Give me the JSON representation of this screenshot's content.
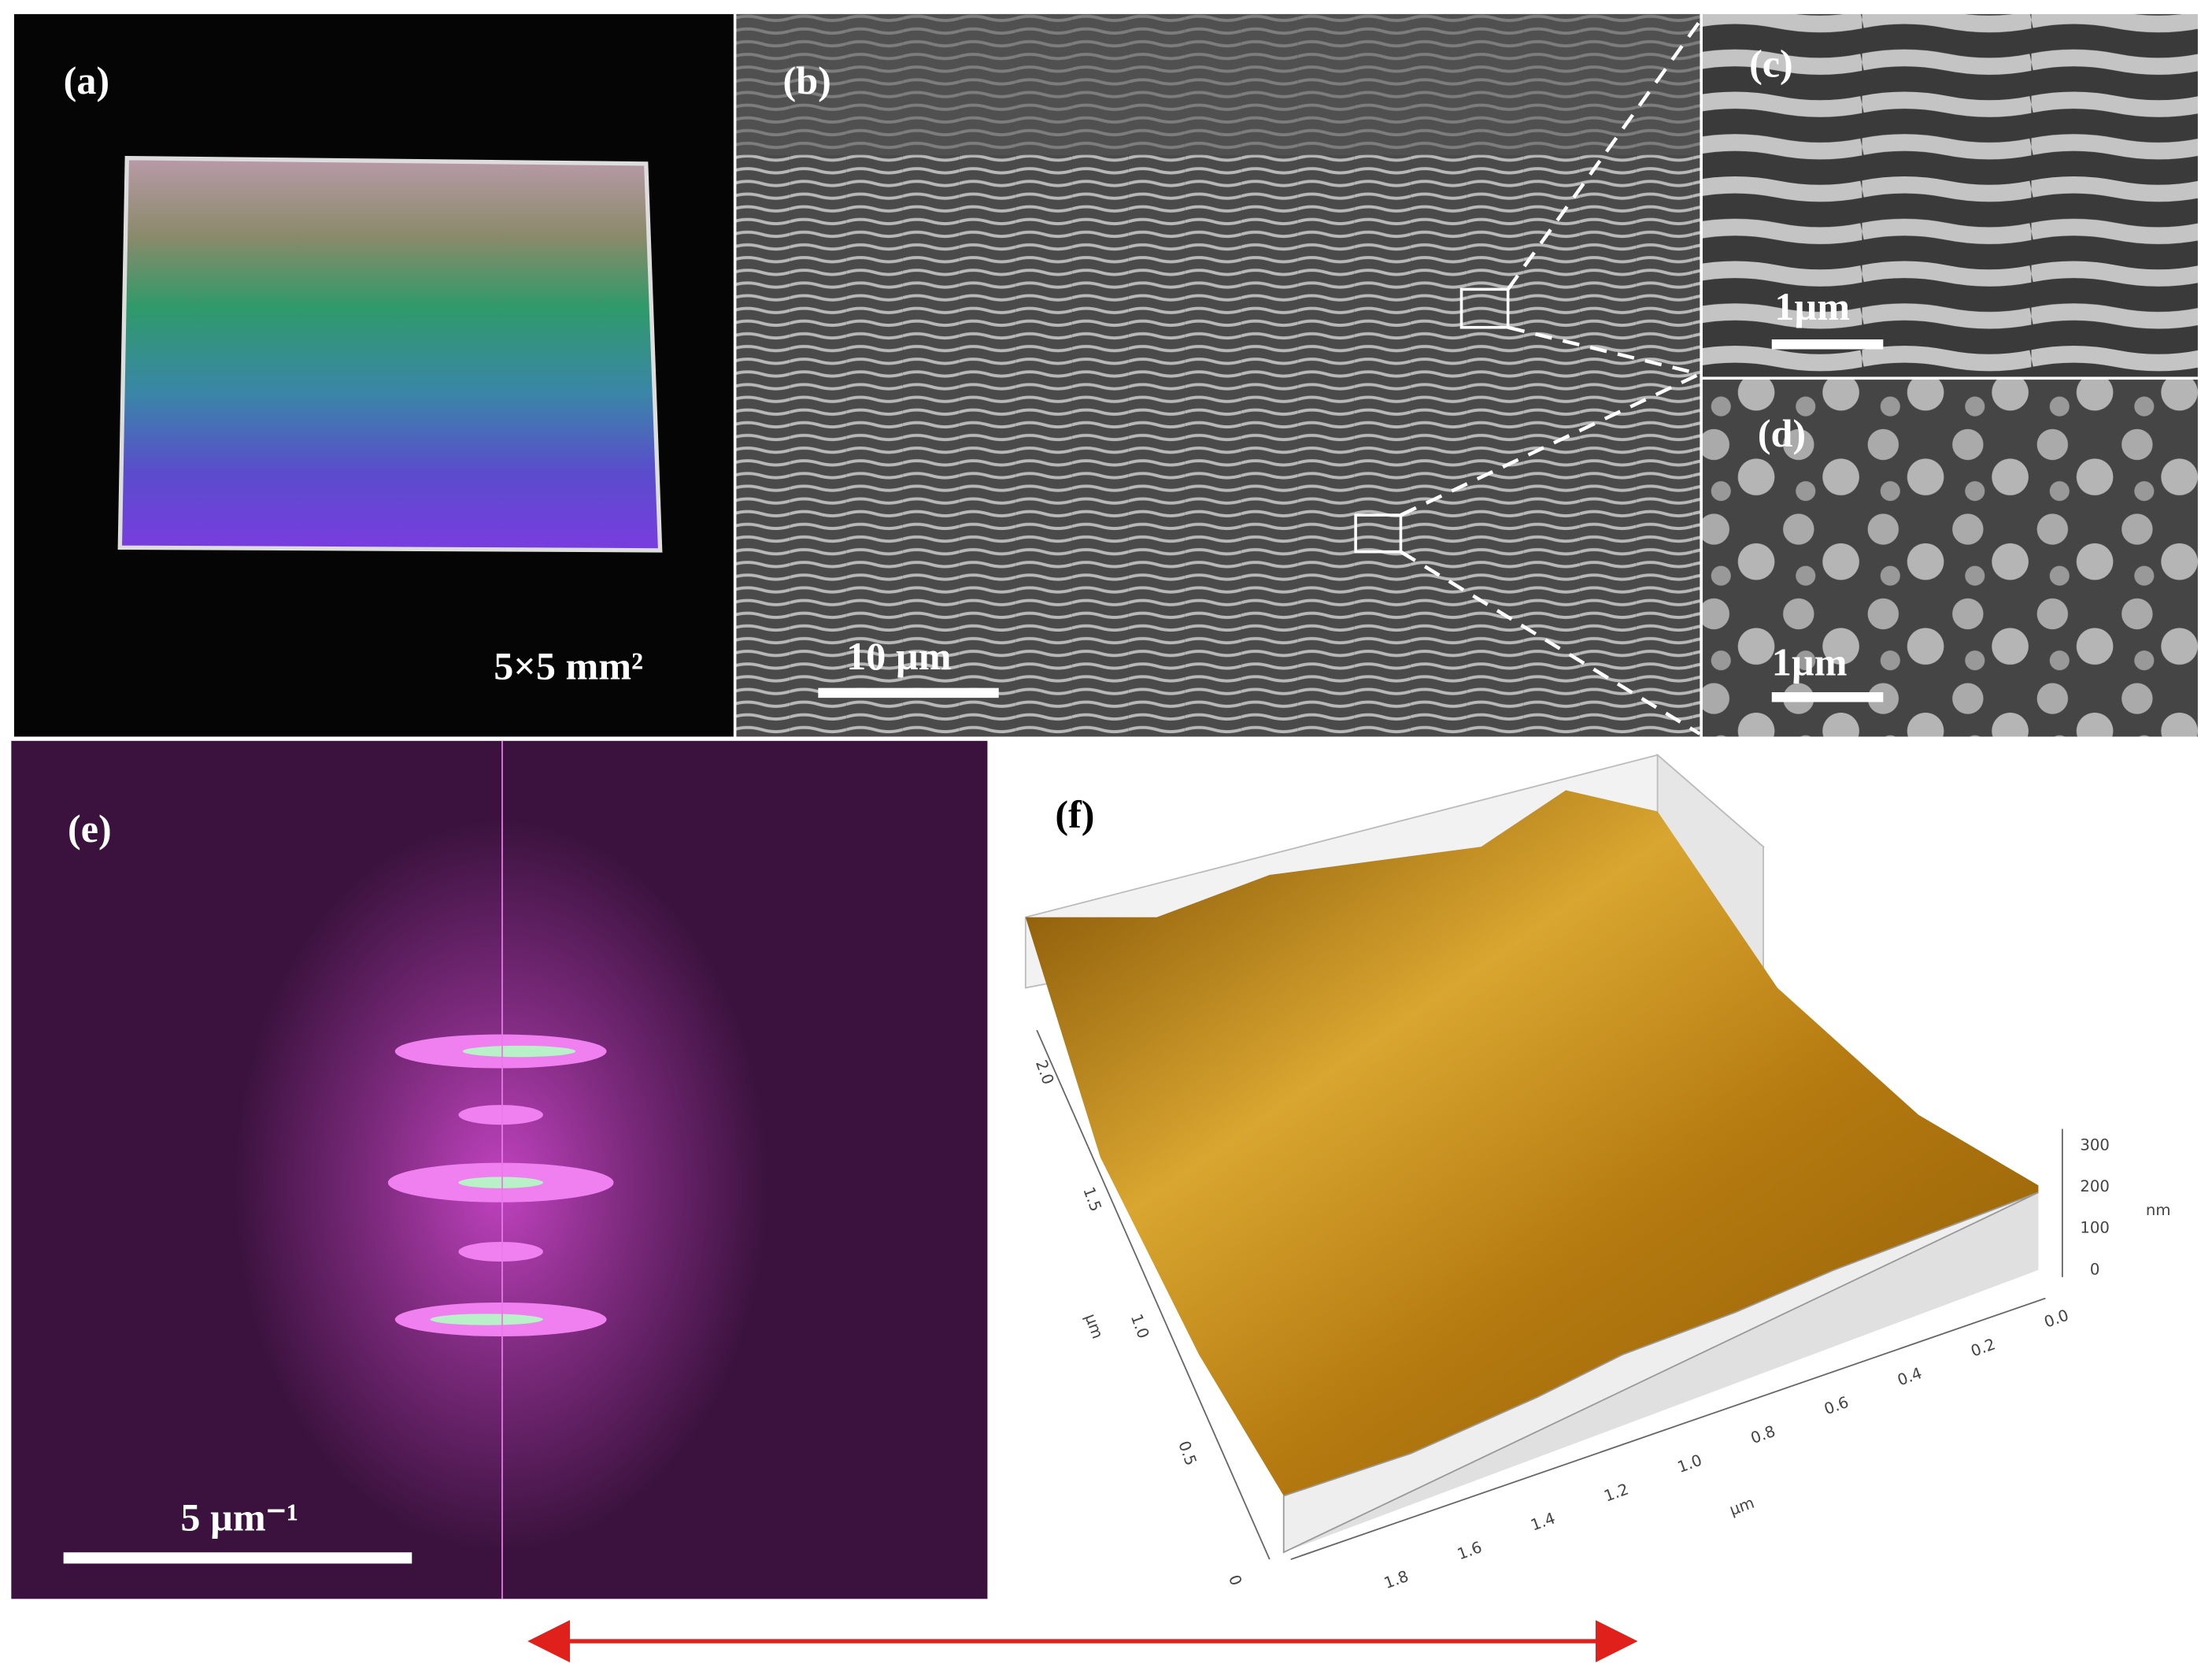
{
  "figure": {
    "panels": [
      {
        "label": "(a)",
        "scale_text": "5×5 mm²"
      },
      {
        "label": "(b)",
        "scale_text": "10 µm"
      },
      {
        "label": "(c)",
        "scale_text": "1µm"
      },
      {
        "label": "(d)",
        "scale_text": "1µm"
      },
      {
        "label": "(e)",
        "scale_text": "5 µm⁻¹"
      },
      {
        "label": "(f)",
        "y_axis": {
          "unit": "µm",
          "ticks": [
            "2.0",
            "1.5",
            "1.0",
            "0.5",
            "0"
          ]
        },
        "x_axis": {
          "unit": "µm",
          "ticks": [
            "1.8",
            "1.6",
            "1.4",
            "1.2",
            "1.0",
            "0.8",
            "0.6",
            "0.4",
            "0.2",
            "0.0"
          ]
        },
        "z_axis": {
          "unit": "nm",
          "ticks": [
            "300",
            "200",
            "100",
            "0"
          ]
        }
      }
    ]
  }
}
